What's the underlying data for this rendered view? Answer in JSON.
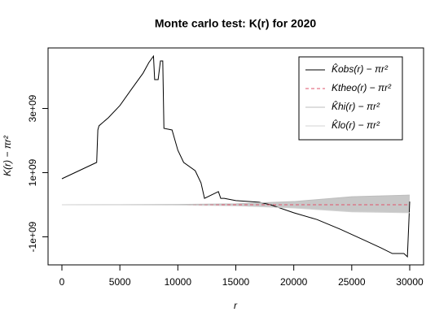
{
  "chart_data": {
    "type": "line",
    "title": "Monte carlo test: K(r) for 2020",
    "x_label": "r",
    "y_label": "K(r) − πr²",
    "xlim": [
      -1194,
      31195
    ],
    "ylim": [
      -1873000000.0,
      4886000000.0
    ],
    "xticks": [
      0,
      5000,
      10000,
      15000,
      20000,
      25000,
      30000
    ],
    "yticks": [
      {
        "value": -1000000000.0,
        "label": "-1e+09"
      },
      {
        "value": 1000000000.0,
        "label": "1e+09"
      },
      {
        "value": 3000000000.0,
        "label": "3e+09"
      }
    ],
    "legend": "top-right",
    "band_color": "#c8c8c8",
    "series": [
      {
        "name": "K̂obs(r) − πr²",
        "color": "#000000",
        "dash": false,
        "x": [
          0,
          3000,
          3100,
          3200,
          4000,
          5000,
          6000,
          7000,
          7500,
          7900,
          8000,
          8300,
          8500,
          8700,
          8800,
          9500,
          10000,
          10500,
          11500,
          12000,
          12300,
          13500,
          13700,
          14000,
          15000,
          17000,
          18000,
          20000,
          22000,
          24000,
          26000,
          27500,
          28500,
          29500,
          29800,
          30000
        ],
        "values": [
          810000000.0,
          1320000000.0,
          2330000000.0,
          2460000000.0,
          2710000000.0,
          3090000000.0,
          3600000000.0,
          4100000000.0,
          4430000000.0,
          4630000000.0,
          3900000000.0,
          3900000000.0,
          4480000000.0,
          4480000000.0,
          2380000000.0,
          2330000000.0,
          1700000000.0,
          1320000000.0,
          1060000000.0,
          680000000.0,
          200000000.0,
          410000000.0,
          200000000.0,
          200000000.0,
          130000000.0,
          80000000.0,
          0,
          -250000000.0,
          -460000000.0,
          -760000000.0,
          -1090000000.0,
          -1340000000.0,
          -1520000000.0,
          -1520000000.0,
          -1620000000.0,
          100000000.0
        ]
      },
      {
        "name": "Ktheo(r) − πr²",
        "color": "#df536b",
        "dash": true,
        "x": [
          0,
          5000,
          10000,
          15000,
          20000,
          25000,
          30000
        ],
        "values": [
          0,
          0,
          0,
          0,
          0,
          0,
          0
        ]
      },
      {
        "name": "K̂hi(r) − πr²",
        "color": "#bdbdbd",
        "dash": false,
        "band": "hi",
        "x": [
          0,
          5000,
          10000,
          15000,
          20000,
          25000,
          30000
        ],
        "values": [
          0,
          3000000.0,
          10000000.0,
          30000000.0,
          100000000.0,
          250000000.0,
          300000000.0
        ]
      },
      {
        "name": "K̂lo(r) − πr²",
        "color": "#d3d3d3",
        "dash": false,
        "band": "lo",
        "x": [
          0,
          5000,
          10000,
          15000,
          20000,
          25000,
          30000
        ],
        "values": [
          0,
          -3000000.0,
          -10000000.0,
          -30000000.0,
          -100000000.0,
          -220000000.0,
          -250000000.0
        ]
      }
    ]
  }
}
